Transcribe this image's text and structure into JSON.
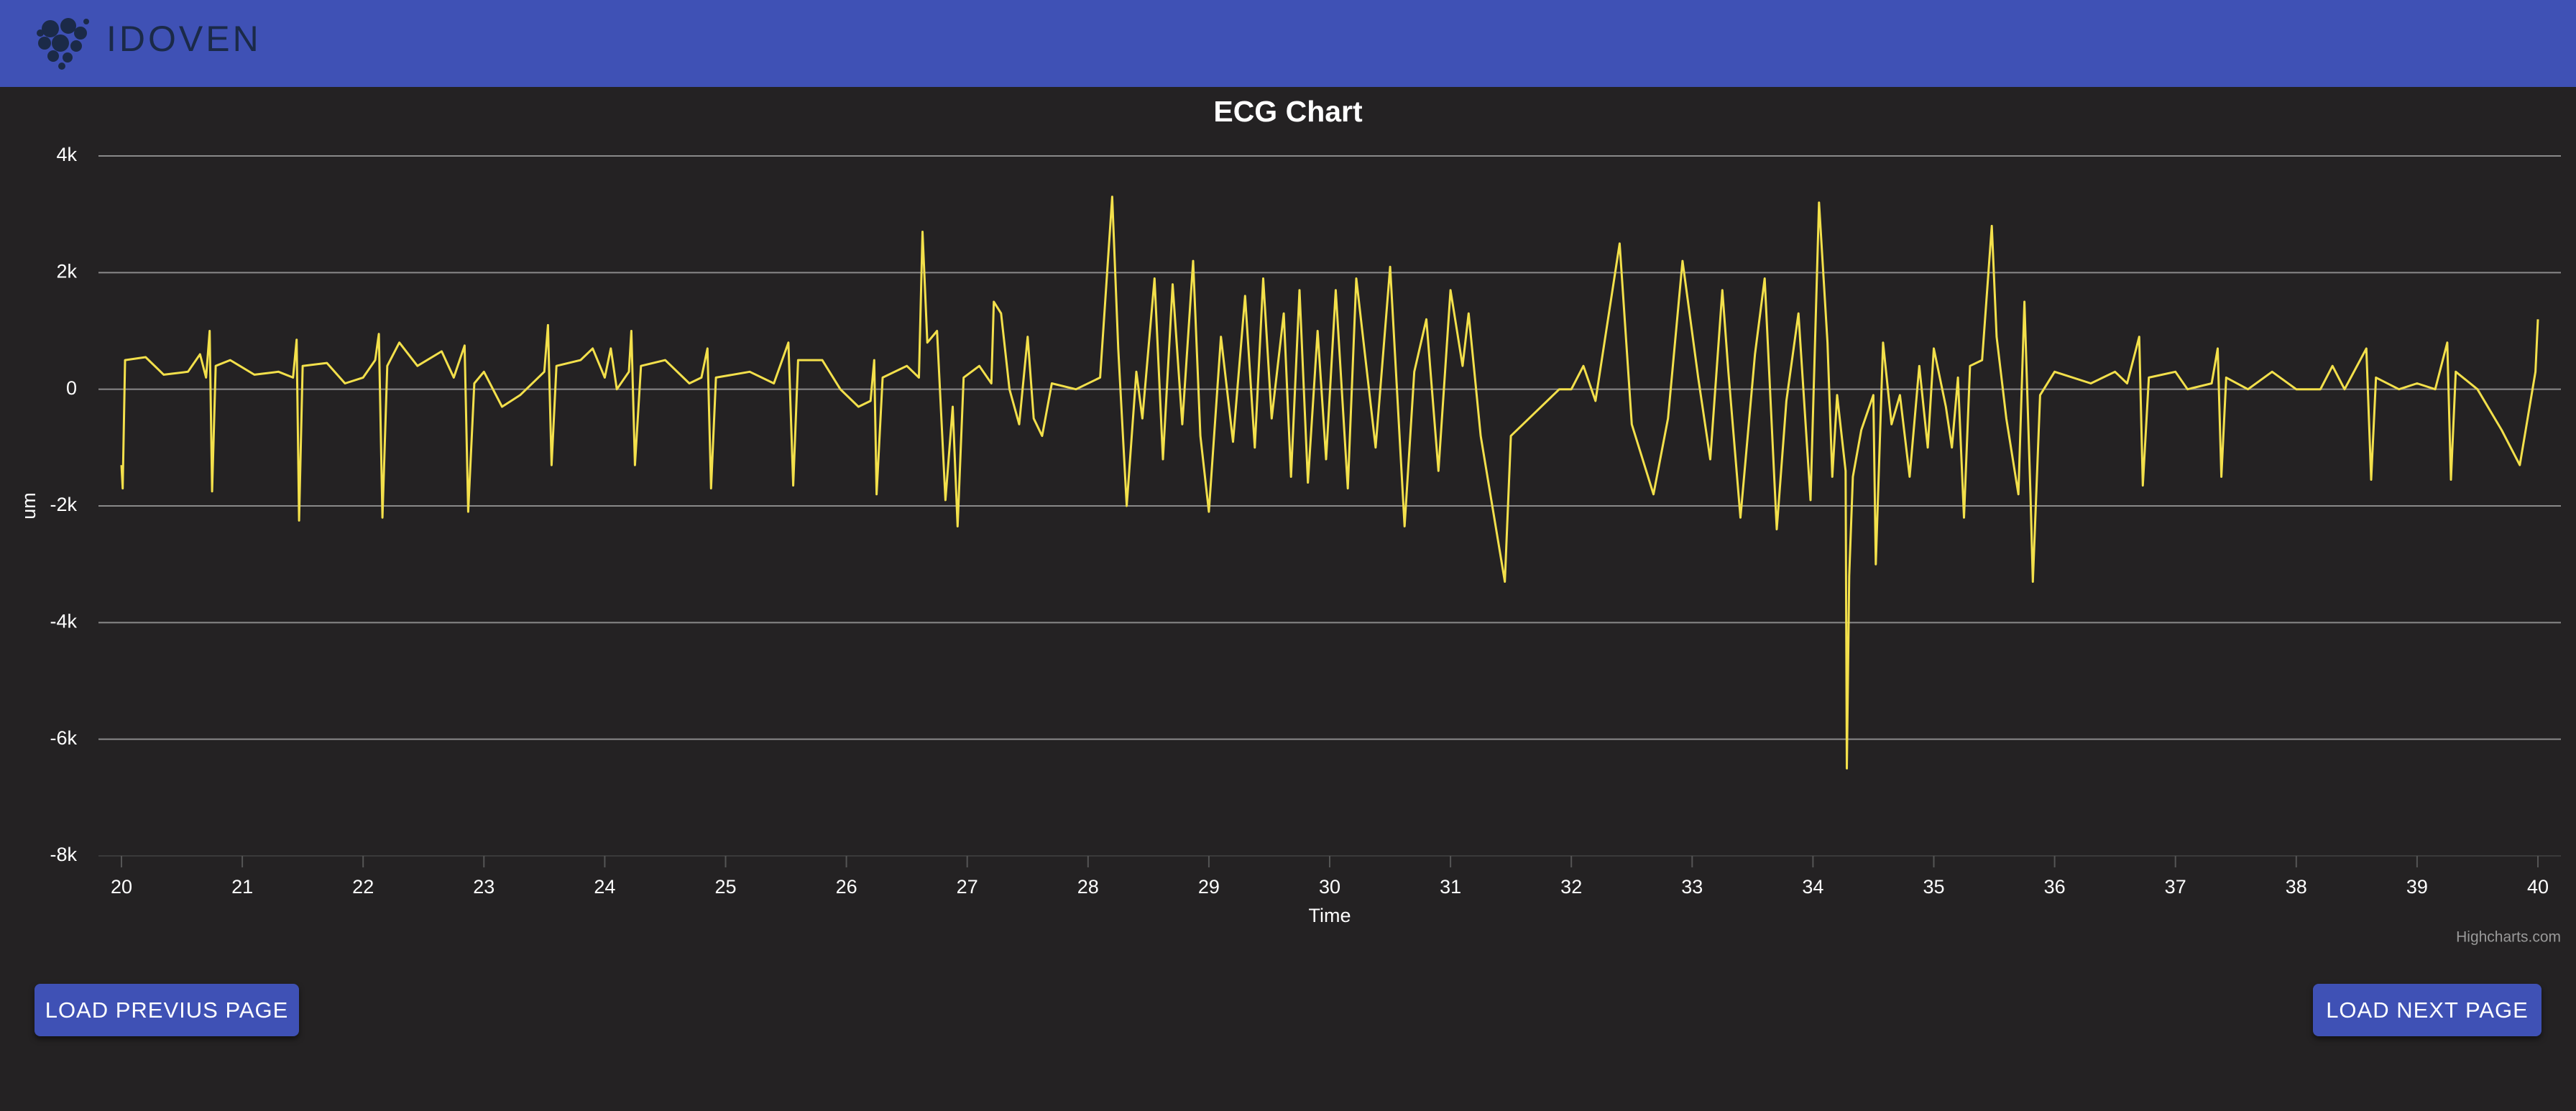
{
  "header": {
    "logo": "IDOVEN"
  },
  "chart_data": {
    "type": "line",
    "title": "ECG Chart",
    "x_label": "Time",
    "y_label": "um",
    "credits": "Highcharts.com",
    "color": "#f3e04b",
    "grid": true,
    "xlim": [
      20,
      40
    ],
    "xticks": [
      20,
      21,
      22,
      23,
      24,
      25,
      26,
      27,
      28,
      29,
      30,
      31,
      32,
      33,
      34,
      35,
      36,
      37,
      38,
      39,
      40
    ],
    "ylim": [
      -8000,
      4000
    ],
    "yticks": [
      {
        "value": -8000,
        "label": "-8k"
      },
      {
        "value": -6000,
        "label": "-6k"
      },
      {
        "value": -4000,
        "label": "-4k"
      },
      {
        "value": -2000,
        "label": "-2k"
      },
      0,
      {
        "value": 2000,
        "label": "2k"
      },
      {
        "value": 4000,
        "label": "4k"
      }
    ],
    "x": [
      20.0,
      20.01,
      20.03,
      20.2,
      20.35,
      20.55,
      20.65,
      20.7,
      20.73,
      20.75,
      20.78,
      20.9,
      21.1,
      21.3,
      21.42,
      21.45,
      21.47,
      21.5,
      21.7,
      21.85,
      22.0,
      22.1,
      22.13,
      22.16,
      22.2,
      22.3,
      22.45,
      22.65,
      22.75,
      22.84,
      22.87,
      22.92,
      23.0,
      23.15,
      23.3,
      23.5,
      23.53,
      23.56,
      23.6,
      23.8,
      23.9,
      24.0,
      24.05,
      24.1,
      24.2,
      24.22,
      24.25,
      24.3,
      24.5,
      24.7,
      24.8,
      24.85,
      24.88,
      24.92,
      25.2,
      25.4,
      25.52,
      25.56,
      25.6,
      25.8,
      25.95,
      26.1,
      26.2,
      26.23,
      26.25,
      26.3,
      26.5,
      26.6,
      26.63,
      26.67,
      26.75,
      26.82,
      26.88,
      26.92,
      26.97,
      27.1,
      27.2,
      27.22,
      27.28,
      27.35,
      27.43,
      27.5,
      27.55,
      27.62,
      27.7,
      27.9,
      28.1,
      28.2,
      28.25,
      28.32,
      28.4,
      28.45,
      28.55,
      28.62,
      28.7,
      28.78,
      28.87,
      28.93,
      29.0,
      29.1,
      29.2,
      29.3,
      29.38,
      29.45,
      29.52,
      29.62,
      29.68,
      29.75,
      29.82,
      29.9,
      29.97,
      30.05,
      30.15,
      30.22,
      30.38,
      30.5,
      30.62,
      30.7,
      30.8,
      30.9,
      31.0,
      31.1,
      31.15,
      31.25,
      31.45,
      31.5,
      31.7,
      31.9,
      32.0,
      32.1,
      32.2,
      32.4,
      32.5,
      32.68,
      32.8,
      32.92,
      33.05,
      33.15,
      33.25,
      33.3,
      33.4,
      33.52,
      33.6,
      33.7,
      33.78,
      33.88,
      33.98,
      34.05,
      34.12,
      34.16,
      34.2,
      34.27,
      34.28,
      34.3,
      34.33,
      34.4,
      34.5,
      34.52,
      34.58,
      34.65,
      34.72,
      34.8,
      34.88,
      34.95,
      35.0,
      35.1,
      35.15,
      35.2,
      35.25,
      35.3,
      35.4,
      35.48,
      35.52,
      35.6,
      35.7,
      35.75,
      35.8,
      35.82,
      35.88,
      36.0,
      36.3,
      36.5,
      36.6,
      36.7,
      36.73,
      36.78,
      37.0,
      37.1,
      37.3,
      37.35,
      37.38,
      37.42,
      37.6,
      37.8,
      38.0,
      38.2,
      38.3,
      38.4,
      38.58,
      38.62,
      38.66,
      38.85,
      39.0,
      39.15,
      39.25,
      39.28,
      39.32,
      39.5,
      39.7,
      39.85,
      39.98,
      40.0
    ],
    "values": [
      -1300,
      -1700,
      500,
      550,
      250,
      300,
      600,
      200,
      1000,
      -1750,
      400,
      500,
      250,
      300,
      200,
      850,
      -2250,
      400,
      450,
      100,
      200,
      500,
      950,
      -2200,
      400,
      800,
      400,
      650,
      200,
      750,
      -2100,
      100,
      300,
      -300,
      -100,
      300,
      1100,
      -1300,
      400,
      500,
      700,
      200,
      700,
      0,
      300,
      1000,
      -1300,
      400,
      500,
      100,
      200,
      700,
      -1700,
      200,
      300,
      100,
      800,
      -1650,
      500,
      500,
      0,
      -300,
      -200,
      500,
      -1800,
      200,
      400,
      200,
      2700,
      800,
      1000,
      -1900,
      -300,
      -2350,
      200,
      400,
      100,
      1500,
      1300,
      0,
      -600,
      900,
      -500,
      -800,
      100,
      0,
      200,
      3300,
      700,
      -2000,
      300,
      -500,
      1900,
      -1200,
      1800,
      -600,
      2200,
      -800,
      -2100,
      900,
      -900,
      1600,
      -1000,
      1900,
      -500,
      1300,
      -1500,
      1700,
      -1600,
      1000,
      -1200,
      1700,
      -1700,
      1900,
      -1000,
      2100,
      -2350,
      300,
      1200,
      -1400,
      1700,
      400,
      1300,
      -800,
      -3300,
      -800,
      -400,
      0,
      0,
      400,
      -200,
      2500,
      -600,
      -1800,
      -500,
      2200,
      200,
      -1200,
      1700,
      300,
      -2200,
      600,
      1900,
      -2400,
      -200,
      1300,
      -1900,
      3200,
      800,
      -1500,
      -100,
      -1400,
      -6500,
      -3200,
      -1500,
      -700,
      -100,
      -3000,
      800,
      -600,
      -100,
      -1500,
      400,
      -1000,
      700,
      -300,
      -1000,
      200,
      -2200,
      400,
      500,
      2800,
      900,
      -500,
      -1800,
      1500,
      -1800,
      -3300,
      -100,
      300,
      100,
      300,
      100,
      900,
      -1650,
      200,
      300,
      0,
      100,
      700,
      -1500,
      200,
      0,
      300,
      0,
      0,
      400,
      0,
      700,
      -1550,
      200,
      0,
      100,
      0,
      800,
      -1550,
      300,
      0,
      -700,
      -1300,
      300,
      1200
    ]
  },
  "buttons": {
    "previous": "LOAD PREVIUS PAGE",
    "next": "LOAD NEXT PAGE"
  }
}
